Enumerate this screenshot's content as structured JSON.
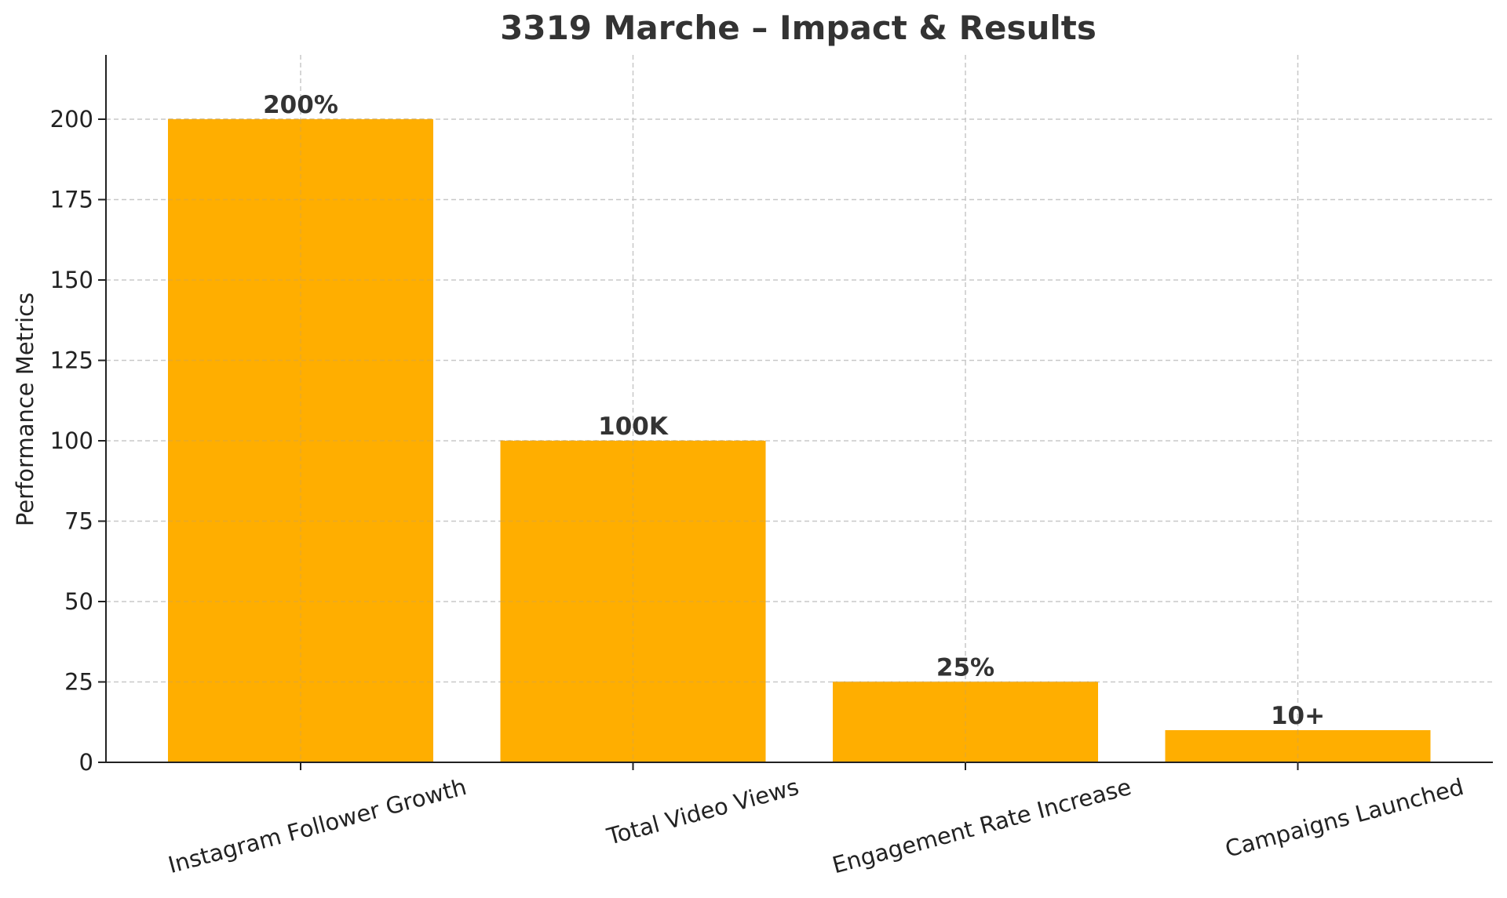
{
  "chart_data": {
    "type": "bar",
    "title": "3319 Marche – Impact & Results",
    "xlabel": "",
    "ylabel": "Performance Metrics",
    "categories": [
      "Instagram Follower Growth",
      "Total Video Views",
      "Engagement Rate Increase",
      "Campaigns Launched"
    ],
    "values": [
      200,
      100,
      25,
      10
    ],
    "data_labels": [
      "200%",
      "100K",
      "25%",
      "10+"
    ],
    "ylim": [
      0,
      220
    ],
    "yticks": [
      0,
      25,
      50,
      75,
      100,
      125,
      150,
      175,
      200
    ],
    "grid": true,
    "bar_color": "#FFAE00",
    "text_color": "#333333",
    "grid_color": "#c8c8c8",
    "axis_color": "#222222"
  }
}
